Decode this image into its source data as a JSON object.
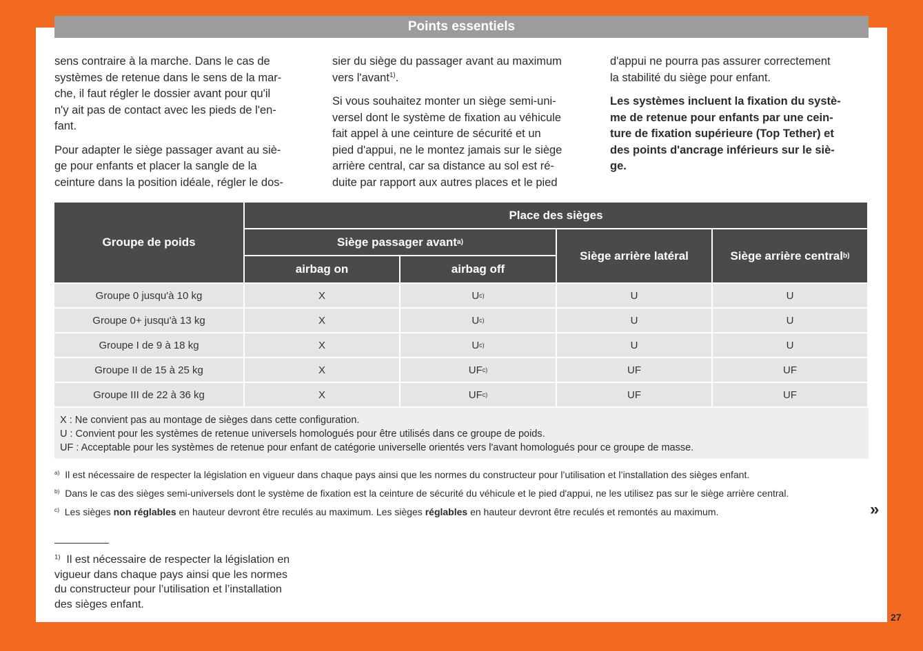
{
  "header": {
    "title": "Points essentiels"
  },
  "columns": [
    {
      "paragraphs": [
        {
          "lines": [
            "sens contraire à la marche. Dans le cas de",
            "systèmes de retenue dans le sens de la mar-",
            "che, il faut régler le dossier avant pour qu'il",
            "n'y ait pas de contact avec les pieds de l'en-",
            "fant."
          ]
        },
        {
          "lines": [
            "Pour adapter le siège passager avant au siè-",
            "ge pour enfants et placer la sangle de la",
            "ceinture dans la position idéale, régler le dos-"
          ]
        }
      ]
    },
    {
      "paragraphs": [
        {
          "lines": [
            "sier du siège du passager avant au maximum",
            {
              "text": "vers l'avant",
              "sup": "1)",
              "after": "."
            }
          ]
        },
        {
          "lines": [
            "Si vous souhaitez monter un siège semi-uni-",
            "versel dont le système de fixation au véhicule",
            "fait appel à une ceinture de sécurité et un",
            "pied d'appui, ne le montez jamais sur le siège",
            "arrière central, car sa distance au sol est ré-",
            "duite par rapport aux autres places et le pied"
          ]
        }
      ]
    },
    {
      "paragraphs": [
        {
          "lines": [
            "d'appui ne pourra pas assurer correctement",
            "la stabilité du siège pour enfant."
          ]
        },
        {
          "bold": true,
          "lines": [
            "Les systèmes incluent la fixation du systè-",
            "me de retenue pour enfants par une cein-",
            "ture de fixation supérieure (Top Tether) et",
            "des points d'ancrage inférieurs sur le siè-",
            "ge."
          ]
        }
      ]
    }
  ],
  "table": {
    "group_header": "Groupe de poids",
    "place_header": "Place des sièges",
    "front_header": {
      "text": "Siège passager avant",
      "sup": "a)"
    },
    "lateral_header": "Siège arrière latéral",
    "central_header": {
      "text": "Siège arrière central",
      "sup": "b)"
    },
    "airbag_on": "airbag on",
    "airbag_off": "airbag off",
    "rows": [
      [
        "Groupe 0 jusqu'à 10 kg",
        "X",
        {
          "text": "U",
          "sup": "c)"
        },
        "U",
        "U"
      ],
      [
        "Groupe 0+ jusqu'à 13 kg",
        "X",
        {
          "text": "U",
          "sup": "c)"
        },
        "U",
        "U"
      ],
      [
        "Groupe I de 9 à 18 kg",
        "X",
        {
          "text": "U",
          "sup": "c)"
        },
        "U",
        "U"
      ],
      [
        "Groupe II de 15 à 25 kg",
        "X",
        {
          "text": "UF",
          "sup": "c)"
        },
        "UF",
        "UF"
      ],
      [
        "Groupe III de 22 à 36 kg",
        "X",
        {
          "text": "UF",
          "sup": "c)"
        },
        "UF",
        "UF"
      ]
    ],
    "legend": [
      "X : Ne convient pas au montage de sièges dans cette configuration.",
      "U : Convient pour les systèmes de retenue universels homologués pour être utilisés dans ce groupe de poids.",
      "UF : Acceptable pour les systèmes de retenue pour enfant de catégorie universelle orientés vers l'avant homologués pour ce groupe de masse."
    ]
  },
  "notes": [
    {
      "mark": "a)",
      "segments": [
        {
          "text": "Il est nécessaire de respecter la législation en vigueur dans chaque pays ainsi que les normes du constructeur pour l’utilisation et l’installation des sièges enfant."
        }
      ]
    },
    {
      "mark": "b)",
      "segments": [
        {
          "text": "Dans le cas des sièges semi-universels dont le système de fixation est la ceinture de sécurité du véhicule et le pied d'appui, ne les utilisez pas sur le siège arrière central."
        }
      ]
    },
    {
      "mark": "c)",
      "segments": [
        {
          "text": "Les sièges "
        },
        {
          "text": "non réglables",
          "bold": true
        },
        {
          "text": " en hauteur devront être reculés au maximum. Les sièges "
        },
        {
          "text": "réglables",
          "bold": true
        },
        {
          "text": " en hauteur devront être reculés et remontés au maximum."
        }
      ]
    }
  ],
  "continue": "»",
  "footnote": {
    "mark": "1)",
    "lines": [
      "Il est nécessaire de respecter la législation en",
      "vigueur dans chaque pays ainsi que les normes",
      "du constructeur pour l’utilisation et l’installation",
      "des sièges enfant."
    ]
  },
  "page_number": "27"
}
